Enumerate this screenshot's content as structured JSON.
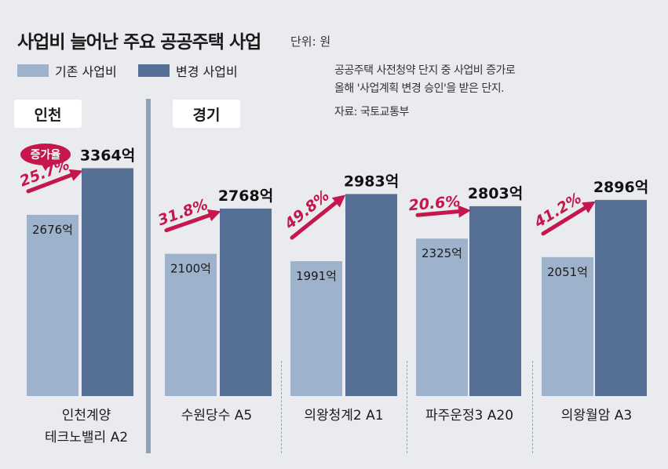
{
  "header": {
    "title": "사업비 늘어난 주요 공공주택 사업",
    "unit": "단위: 원"
  },
  "legend": {
    "old": {
      "label": "기존 사업비",
      "color": "#9eb2cc"
    },
    "new": {
      "label": "변경 사업비",
      "color": "#566f95"
    }
  },
  "note": {
    "line1": "공공주택 사전청약 단지 중 사업비 증가로",
    "line2": "올해 '사업계획 변경 승인'을 받은 단지.",
    "source": "자료: 국토교통부"
  },
  "regions": {
    "incheon": "인천",
    "gyeonggi": "경기"
  },
  "badge": "증가율",
  "accent_color": "#c5174d",
  "projects": {
    "p0": {
      "line1": "인천계양",
      "line2": "테크노밸리 A2"
    },
    "p1": "수원당수 A5",
    "p2": "의왕청계2 A1",
    "p3": "파주운정3 A20",
    "p4": "의왕월암 A3"
  },
  "chart_data": {
    "type": "bar",
    "title": "사업비 늘어난 주요 공공주택 사업",
    "unit": "억 원",
    "categories": [
      "인천계양 테크노밸리 A2",
      "수원당수 A5",
      "의왕청계2 A1",
      "파주운정3 A20",
      "의왕월암 A3"
    ],
    "series": [
      {
        "name": "기존 사업비",
        "values": [
          2676,
          2100,
          1991,
          2325,
          2051
        ],
        "labels": [
          "2676억",
          "2100억",
          "1991억",
          "2325억",
          "2051억"
        ]
      },
      {
        "name": "변경 사업비",
        "values": [
          3364,
          2768,
          2983,
          2803,
          2896
        ],
        "labels": [
          "3364억",
          "2768억",
          "2983억",
          "2803억",
          "2896억"
        ]
      }
    ],
    "growth_rates": [
      "25.7%",
      "31.8%",
      "49.8%",
      "20.6%",
      "41.2%"
    ],
    "ylim": [
      0,
      4400
    ]
  }
}
